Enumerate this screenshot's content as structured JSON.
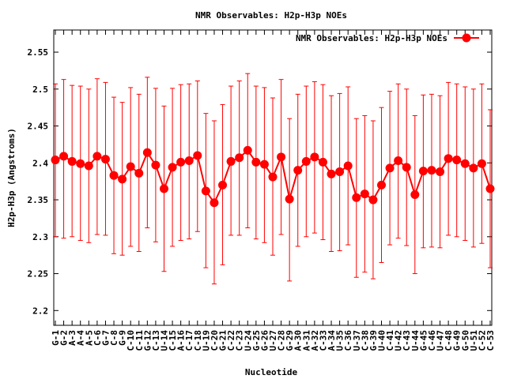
{
  "chart_data": {
    "type": "line",
    "title": "NMR Observables: H2p-H3p NOEs",
    "xlabel": "Nucleotide",
    "ylabel": "H2p-H3p (Angstroms)",
    "ylim": [
      2.18,
      2.58
    ],
    "yticks": [
      "2.2",
      "2.25",
      "2.3",
      "2.35",
      "2.4",
      "2.45",
      "2.5",
      "2.55"
    ],
    "categories": [
      "G-1",
      "G-2",
      "A-3",
      "A-4",
      "A-5",
      "C-6",
      "G-7",
      "C-8",
      "G-9",
      "C-10",
      "C-11",
      "G-12",
      "C-13",
      "U-14",
      "C-15",
      "A-16",
      "C-17",
      "C-18",
      "U-19",
      "C-20",
      "G-21",
      "C-22",
      "C-23",
      "U-24",
      "G-25",
      "G-26",
      "U-27",
      "C-28",
      "G-29",
      "A-30",
      "A-31",
      "A-32",
      "C-33",
      "A-34",
      "U-35",
      "C-36",
      "U-37",
      "C-38",
      "G-39",
      "U-40",
      "C-41",
      "U-42",
      "C-43",
      "U-44",
      "G-45",
      "C-46",
      "U-47",
      "C-48",
      "G-49",
      "G-50",
      "U-51",
      "C-52",
      "C-53"
    ],
    "series": [
      {
        "name": "NMR Observables: H2p-H3p NOEs",
        "color": "#ff0000",
        "values": [
          2.404,
          2.409,
          2.402,
          2.399,
          2.396,
          2.409,
          2.405,
          2.383,
          2.378,
          2.395,
          2.386,
          2.414,
          2.397,
          2.365,
          2.394,
          2.401,
          2.403,
          2.41,
          2.362,
          2.346,
          2.37,
          2.402,
          2.407,
          2.417,
          2.401,
          2.398,
          2.381,
          2.408,
          2.351,
          2.39,
          2.402,
          2.408,
          2.401,
          2.385,
          2.388,
          2.396,
          2.353,
          2.358,
          2.35,
          2.37,
          2.393,
          2.403,
          2.394,
          2.357,
          2.389,
          2.39,
          2.388,
          2.406,
          2.404,
          2.399,
          2.393,
          2.399,
          2.365
        ],
        "err_low": [
          2.3,
          2.298,
          2.3,
          2.295,
          2.292,
          2.303,
          2.302,
          2.277,
          2.275,
          2.287,
          2.28,
          2.312,
          2.293,
          2.253,
          2.287,
          2.295,
          2.297,
          2.307,
          2.258,
          2.236,
          2.262,
          2.302,
          2.302,
          2.312,
          2.297,
          2.292,
          2.275,
          2.303,
          2.24,
          2.287,
          2.3,
          2.305,
          2.296,
          2.28,
          2.281,
          2.289,
          2.245,
          2.252,
          2.243,
          2.265,
          2.289,
          2.298,
          2.288,
          2.25,
          2.285,
          2.286,
          2.285,
          2.302,
          2.3,
          2.295,
          2.286,
          2.291,
          2.258
        ],
        "err_high": [
          2.507,
          2.513,
          2.505,
          2.504,
          2.5,
          2.514,
          2.509,
          2.489,
          2.482,
          2.502,
          2.493,
          2.516,
          2.501,
          2.477,
          2.501,
          2.506,
          2.507,
          2.511,
          2.467,
          2.457,
          2.479,
          2.504,
          2.511,
          2.521,
          2.504,
          2.502,
          2.488,
          2.513,
          2.46,
          2.493,
          2.504,
          2.51,
          2.506,
          2.491,
          2.494,
          2.503,
          2.46,
          2.464,
          2.457,
          2.475,
          2.497,
          2.507,
          2.5,
          2.464,
          2.492,
          2.493,
          2.491,
          2.509,
          2.507,
          2.503,
          2.5,
          2.507,
          2.472
        ]
      }
    ],
    "grid": false,
    "legend": "top-right"
  }
}
